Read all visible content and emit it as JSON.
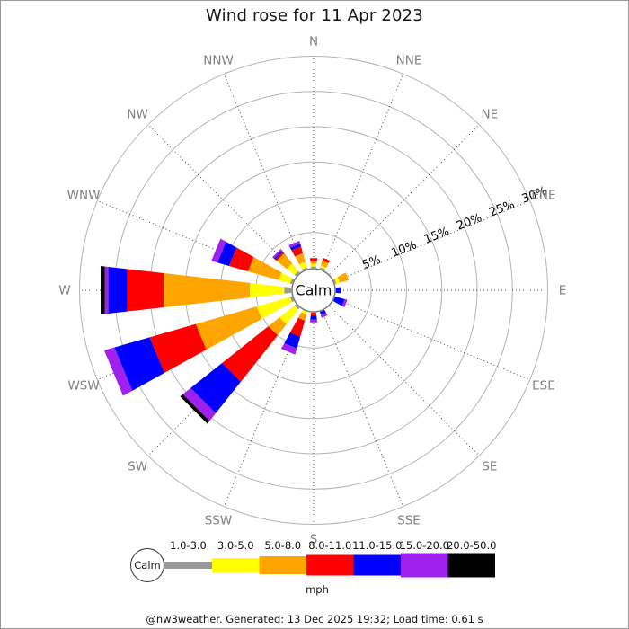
{
  "title": "Wind rose for 11 Apr 2023",
  "footer": "@nw3weather. Generated: 13 Dec 2025 19:32; Load time: 0.61 s",
  "colors": {
    "grid_ring": "#b3b3b3",
    "spoke_dots": "#444444",
    "direction_label": "#808080",
    "percent_label": "#000000",
    "calm_circle_stroke": "#777777",
    "text": "#111111"
  },
  "chart_data": {
    "type": "bar",
    "polar": true,
    "title": "Wind rose for 11 Apr 2023",
    "units_label": "mph",
    "calm_label": "Calm",
    "axis": {
      "percent_rings": [
        5,
        10,
        15,
        20,
        25,
        30
      ],
      "percent_ring_labels": [
        "5%",
        "10%",
        "15%",
        "20%",
        "25%",
        "30%"
      ],
      "rlim": [
        0,
        30
      ],
      "grid": true
    },
    "direction_labels": [
      "N",
      "NNE",
      "NE",
      "ENE",
      "E",
      "ESE",
      "SE",
      "SSE",
      "S",
      "SSW",
      "SW",
      "WSW",
      "W",
      "WNW",
      "NW",
      "NNW"
    ],
    "speed_bins": [
      {
        "label": "1.0-3.0",
        "color": "#999999"
      },
      {
        "label": "3.0-5.0",
        "color": "#ffff00"
      },
      {
        "label": "5.0-8.0",
        "color": "#ffa500"
      },
      {
        "label": "8.0-11.0",
        "color": "#ff0000"
      },
      {
        "label": "11.0-15.0",
        "color": "#0000ff"
      },
      {
        "label": "15.0-20.0",
        "color": "#a020f0"
      },
      {
        "label": "20.0-50.0",
        "color": "#000000"
      }
    ],
    "series": [
      {
        "name": "N",
        "values": [
          0.2,
          0.4,
          0.3,
          0.5,
          0,
          0,
          0
        ]
      },
      {
        "name": "NNE",
        "values": [
          0.2,
          0.3,
          0.7,
          0.4,
          0,
          0,
          0
        ]
      },
      {
        "name": "NE",
        "values": [
          0,
          0,
          0,
          0,
          0,
          0,
          0
        ]
      },
      {
        "name": "ENE",
        "values": [
          0.2,
          0.5,
          1.3,
          0,
          0,
          0,
          0
        ]
      },
      {
        "name": "E",
        "values": [
          0,
          0,
          0,
          0,
          0.7,
          0,
          0
        ]
      },
      {
        "name": "ESE",
        "values": [
          0,
          0,
          0,
          0,
          1.4,
          0.4,
          0
        ]
      },
      {
        "name": "SE",
        "values": [
          0,
          0,
          0,
          0,
          0,
          0,
          0
        ]
      },
      {
        "name": "SSE",
        "values": [
          0,
          0,
          0,
          0,
          0.5,
          0.4,
          0
        ]
      },
      {
        "name": "S",
        "values": [
          0,
          0,
          0,
          0.4,
          0.6,
          0.4,
          0
        ]
      },
      {
        "name": "SSW",
        "values": [
          0,
          0.4,
          0.9,
          2.4,
          1.7,
          0.9,
          0
        ]
      },
      {
        "name": "SW",
        "values": [
          0.3,
          2.7,
          2.0,
          8.4,
          5.7,
          1.4,
          0.5
        ]
      },
      {
        "name": "WSW",
        "values": [
          0.3,
          4.9,
          9.0,
          6.8,
          5.2,
          1.5,
          0
        ]
      },
      {
        "name": "W",
        "values": [
          1.0,
          4.9,
          12.3,
          5.2,
          2.7,
          0.5,
          0.6
        ]
      },
      {
        "name": "WNW",
        "values": [
          0.3,
          1.7,
          4.5,
          2.8,
          1.7,
          0.9,
          0
        ]
      },
      {
        "name": "NW",
        "values": [
          0.3,
          1.4,
          1.8,
          0.3,
          0.2,
          0.3,
          0
        ]
      },
      {
        "name": "NNW",
        "values": [
          0.2,
          0.8,
          1.3,
          1.0,
          0.4,
          0.4,
          0
        ]
      }
    ]
  }
}
